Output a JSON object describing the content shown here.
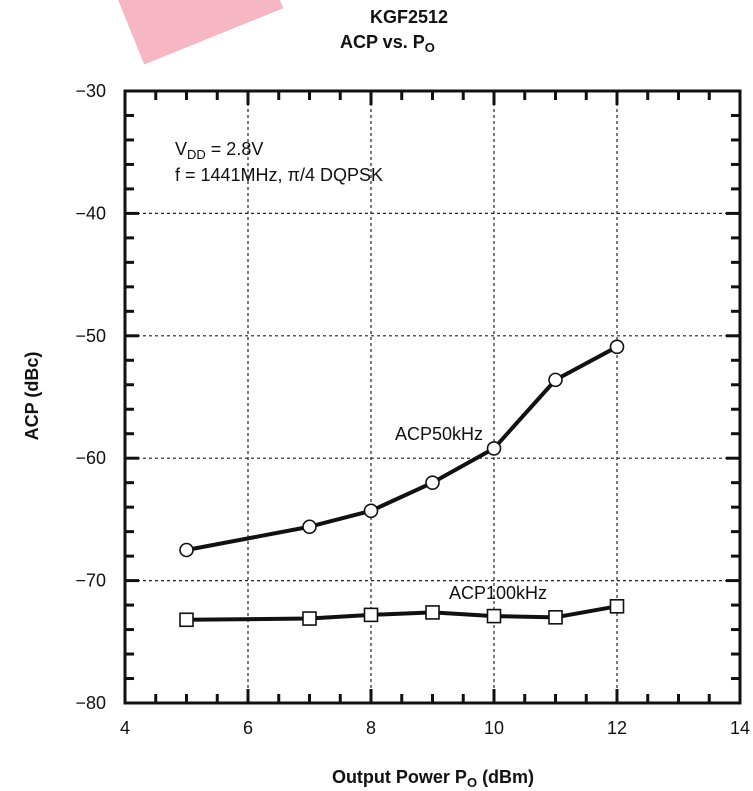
{
  "chart_data": {
    "type": "line",
    "title_main": "KGF2512",
    "title_sub_prefix": "ACP vs. P",
    "title_sub_subscript": "O",
    "xlabel_prefix": "Output Power P",
    "xlabel_subscript": "O",
    "xlabel_suffix": " (dBm)",
    "ylabel": "ACP (dBc)",
    "xlim": [
      4,
      14
    ],
    "ylim": [
      -80,
      -30
    ],
    "x_ticks": [
      4,
      6,
      8,
      10,
      12,
      14
    ],
    "y_ticks": [
      -30,
      -40,
      -50,
      -60,
      -70,
      -80
    ],
    "y_tick_labels": [
      "−30",
      "−40",
      "−50",
      "−60",
      "−70",
      "−80"
    ],
    "grid": true,
    "annotation_line1_prefix": "V",
    "annotation_line1_subscript": "DD",
    "annotation_line1_suffix": " = 2.8V",
    "annotation_line2": "f = 1441MHz, π/4 DQPSK",
    "series": [
      {
        "name": "ACP50kHz",
        "marker": "circle",
        "x": [
          5,
          7,
          8,
          9,
          10,
          11,
          12
        ],
        "y": [
          -67.5,
          -65.6,
          -64.3,
          -62.0,
          -59.2,
          -53.6,
          -50.9
        ]
      },
      {
        "name": "ACP100kHz",
        "marker": "square",
        "x": [
          5,
          7,
          8,
          9,
          10,
          11,
          12
        ],
        "y": [
          -73.2,
          -73.1,
          -72.8,
          -72.6,
          -72.9,
          -73.0,
          -72.1
        ]
      }
    ]
  }
}
